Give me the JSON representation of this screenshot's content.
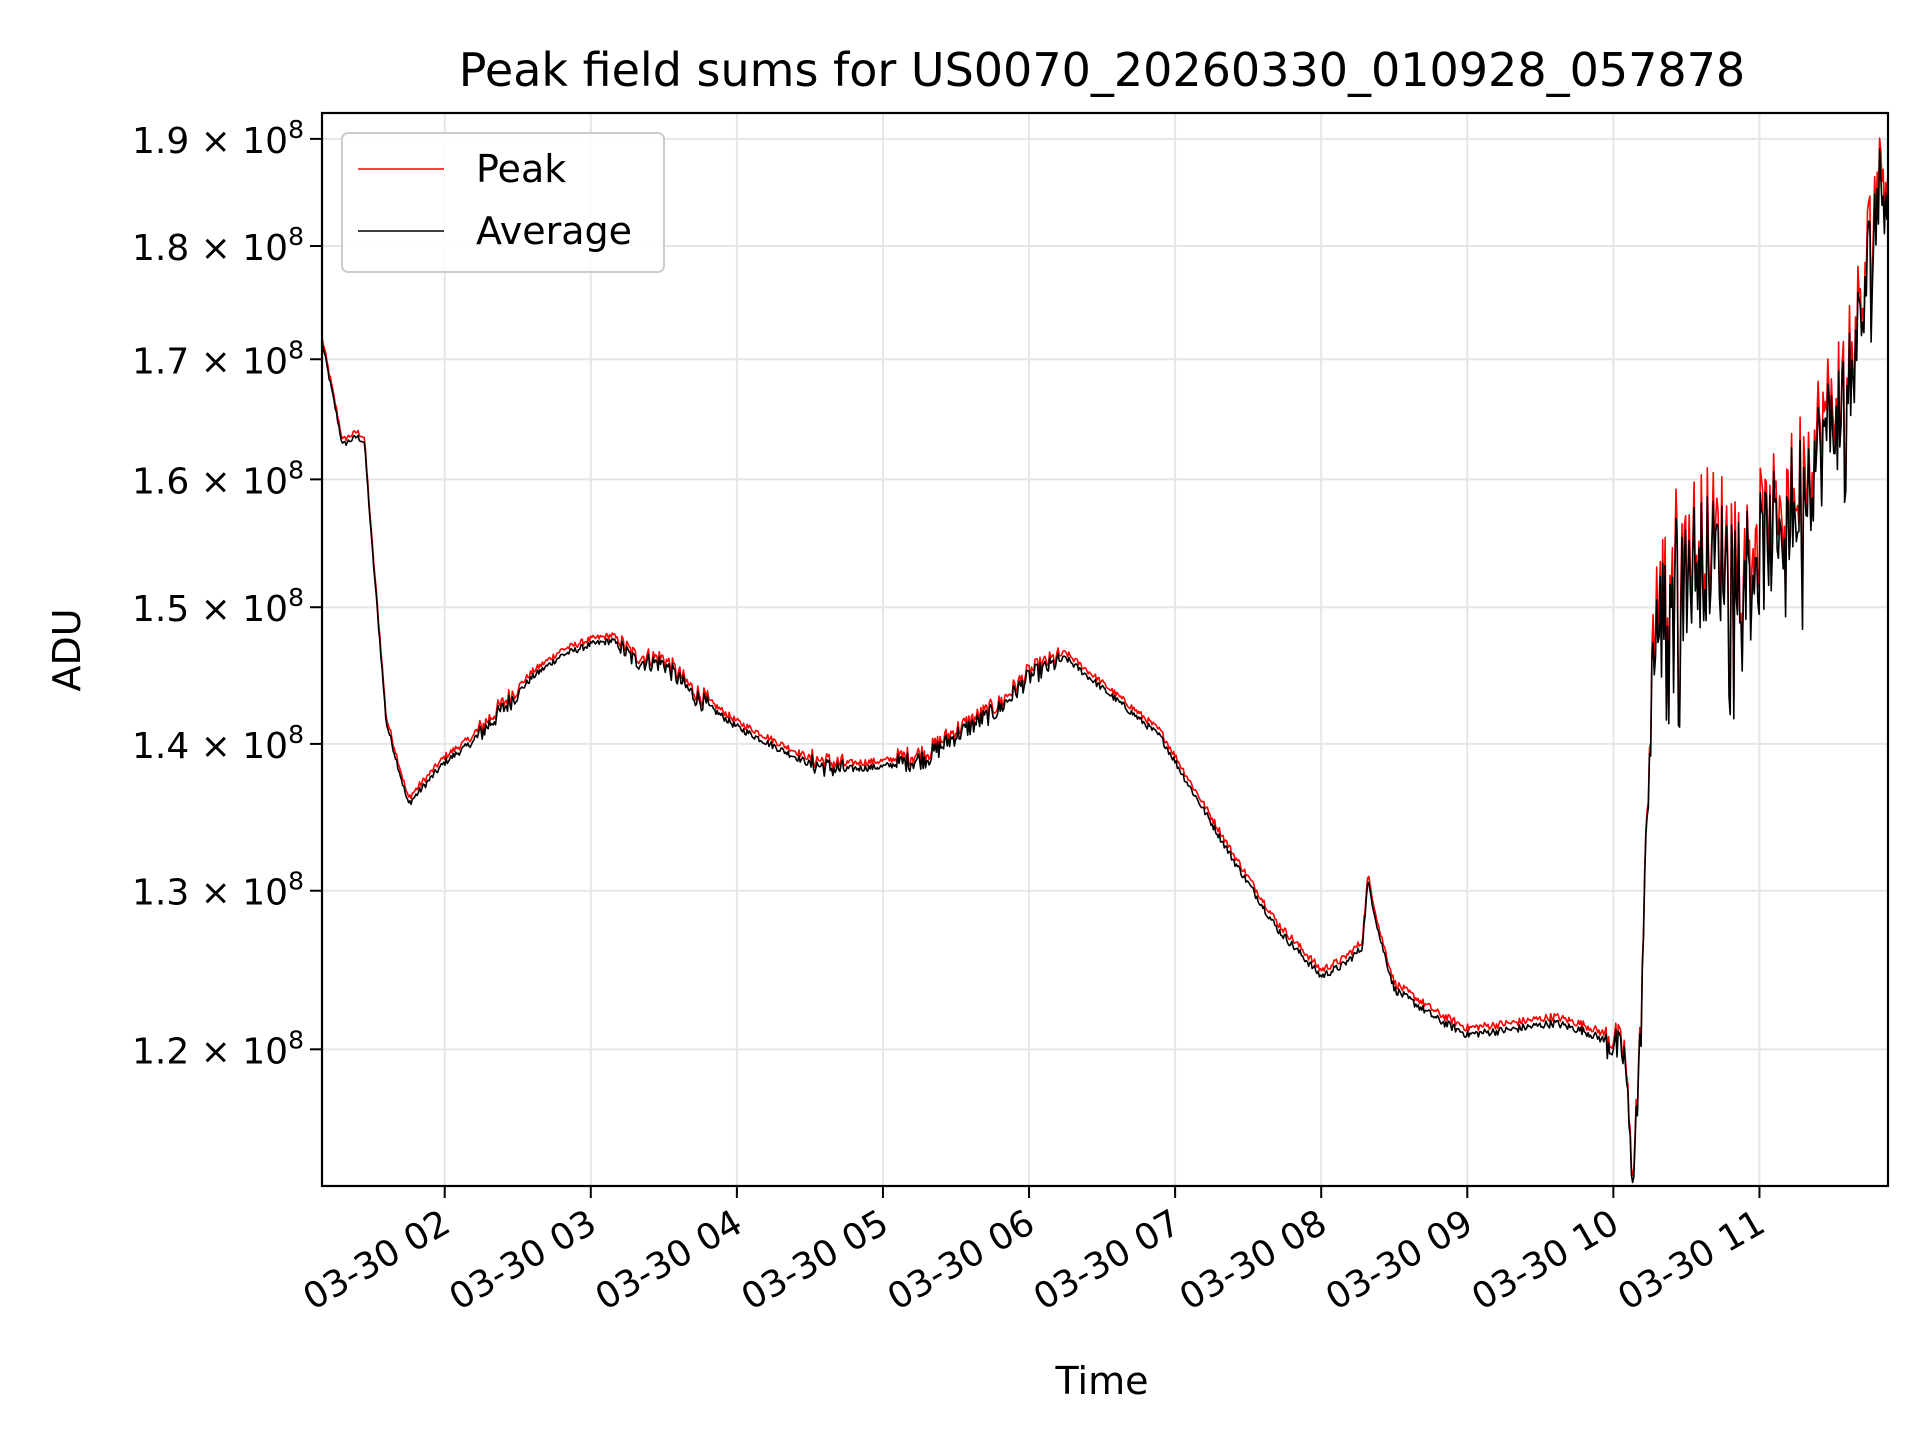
{
  "chart_data": {
    "type": "line",
    "title": "Peak field sums for US0070_20260330_010928_057878",
    "xlabel": "Time",
    "ylabel": "ADU",
    "y_scale": "log",
    "ylim": [
      112000000,
      192500000
    ],
    "xlim_hours": [
      1.16,
      11.88
    ],
    "x_ticks": [
      {
        "hour": 2,
        "label": "03-30 02"
      },
      {
        "hour": 3,
        "label": "03-30 03"
      },
      {
        "hour": 4,
        "label": "03-30 04"
      },
      {
        "hour": 5,
        "label": "03-30 05"
      },
      {
        "hour": 6,
        "label": "03-30 06"
      },
      {
        "hour": 7,
        "label": "03-30 07"
      },
      {
        "hour": 8,
        "label": "03-30 08"
      },
      {
        "hour": 9,
        "label": "03-30 09"
      },
      {
        "hour": 10,
        "label": "03-30 10"
      },
      {
        "hour": 11,
        "label": "03-30 11"
      }
    ],
    "y_ticks": [
      {
        "value": 120000000,
        "mantissa": "1.2",
        "exponent": "8"
      },
      {
        "value": 130000000,
        "mantissa": "1.3",
        "exponent": "8"
      },
      {
        "value": 140000000,
        "mantissa": "1.4",
        "exponent": "8"
      },
      {
        "value": 150000000,
        "mantissa": "1.5",
        "exponent": "8"
      },
      {
        "value": 160000000,
        "mantissa": "1.6",
        "exponent": "8"
      },
      {
        "value": 170000000,
        "mantissa": "1.7",
        "exponent": "8"
      },
      {
        "value": 180000000,
        "mantissa": "1.8",
        "exponent": "8"
      },
      {
        "value": 190000000,
        "mantissa": "1.9",
        "exponent": "8"
      }
    ],
    "tick_times_sign": "×",
    "tick_base": "10",
    "grid": true,
    "legend_position": "upper-left",
    "series": [
      {
        "name": "Peak",
        "color": "#ff0000",
        "offset": 400000
      },
      {
        "name": "Average",
        "color": "#000000",
        "offset": 0
      }
    ],
    "average_keypoints": [
      [
        1.16,
        171500000
      ],
      [
        1.3,
        162800000
      ],
      [
        1.4,
        163500000
      ],
      [
        1.45,
        163000000
      ],
      [
        1.5,
        155000000
      ],
      [
        1.6,
        141500000
      ],
      [
        1.75,
        135800000
      ],
      [
        2.0,
        138700000
      ],
      [
        2.2,
        140200000
      ],
      [
        2.4,
        142500000
      ],
      [
        2.6,
        144800000
      ],
      [
        2.8,
        146400000
      ],
      [
        3.0,
        147200000
      ],
      [
        3.15,
        147500000
      ],
      [
        3.3,
        146000000
      ],
      [
        3.5,
        145800000
      ],
      [
        3.7,
        143500000
      ],
      [
        4.0,
        141200000
      ],
      [
        4.3,
        139600000
      ],
      [
        4.5,
        138600000
      ],
      [
        4.7,
        138200000
      ],
      [
        5.0,
        138400000
      ],
      [
        5.3,
        139000000
      ],
      [
        5.5,
        140600000
      ],
      [
        5.8,
        142500000
      ],
      [
        6.0,
        144800000
      ],
      [
        6.25,
        146200000
      ],
      [
        6.5,
        144000000
      ],
      [
        6.9,
        140500000
      ],
      [
        7.1,
        137000000
      ],
      [
        7.4,
        132000000
      ],
      [
        7.7,
        127500000
      ],
      [
        8.0,
        124500000
      ],
      [
        8.15,
        125200000
      ],
      [
        8.28,
        126300000
      ],
      [
        8.32,
        130600000
      ],
      [
        8.4,
        127000000
      ],
      [
        8.5,
        123700000
      ],
      [
        8.8,
        121800000
      ],
      [
        9.0,
        120900000
      ],
      [
        9.3,
        121200000
      ],
      [
        9.6,
        121600000
      ],
      [
        9.8,
        121100000
      ],
      [
        10.0,
        120300000
      ],
      [
        10.08,
        119500000
      ],
      [
        10.13,
        112000000
      ],
      [
        10.18,
        119000000
      ],
      [
        10.22,
        131500000
      ],
      [
        10.27,
        146500000
      ],
      [
        10.4,
        152000000
      ],
      [
        10.6,
        154000000
      ],
      [
        10.8,
        153500000
      ],
      [
        11.0,
        154000000
      ],
      [
        11.2,
        157500000
      ],
      [
        11.4,
        162000000
      ],
      [
        11.55,
        166000000
      ],
      [
        11.7,
        173000000
      ],
      [
        11.8,
        184000000
      ],
      [
        11.88,
        187000000
      ]
    ]
  }
}
